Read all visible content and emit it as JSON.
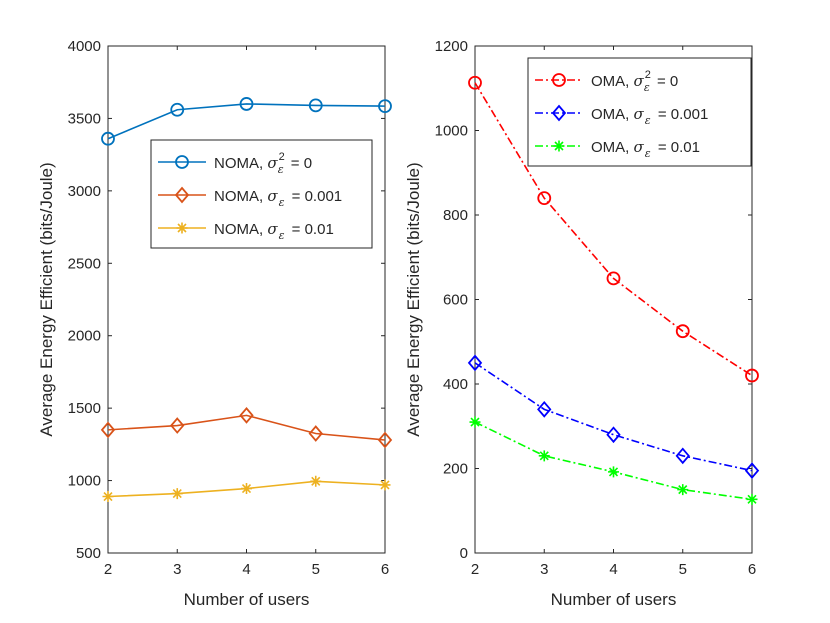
{
  "chart_data": [
    {
      "type": "line",
      "xlabel": "Number of users",
      "ylabel": "Average Energy Efficient (bits/Joule)",
      "x": [
        2,
        3,
        4,
        5,
        6
      ],
      "xlim": [
        2,
        6
      ],
      "ylim": [
        500,
        4000
      ],
      "xticks": [
        "2",
        "3",
        "4",
        "5",
        "6"
      ],
      "yticks": [
        "500",
        "1000",
        "1500",
        "2000",
        "2500",
        "3000",
        "3500",
        "4000"
      ],
      "legend_location": "center-right",
      "series": [
        {
          "name": "NOMA, σ_ε^2 = 0",
          "label_prefix": "NOMA,",
          "sym": "σ",
          "sub": "ε",
          "sup": "2",
          "label_suffix": "= 0",
          "color": "#0072BD",
          "marker": "circle",
          "line": "solid",
          "values": [
            3360,
            3560,
            3600,
            3590,
            3585
          ]
        },
        {
          "name": "NOMA, σ_ε = 0.001",
          "label_prefix": "NOMA,",
          "sym": "σ",
          "sub": "ε",
          "sup": "",
          "label_suffix": "= 0.001",
          "color": "#D95319",
          "marker": "diamond",
          "line": "solid",
          "values": [
            1350,
            1380,
            1450,
            1325,
            1280
          ]
        },
        {
          "name": "NOMA, σ_ε = 0.01",
          "label_prefix": "NOMA,",
          "sym": "σ",
          "sub": "ε",
          "sup": "",
          "label_suffix": "= 0.01",
          "color": "#EDB120",
          "marker": "star",
          "line": "solid",
          "values": [
            890,
            910,
            945,
            995,
            970
          ]
        }
      ]
    },
    {
      "type": "line",
      "xlabel": "Number of users",
      "ylabel": "Average Energy Efficient (bits/Joule)",
      "x": [
        2,
        3,
        4,
        5,
        6
      ],
      "xlim": [
        2,
        6
      ],
      "ylim": [
        0,
        1200
      ],
      "xticks": [
        "2",
        "3",
        "4",
        "5",
        "6"
      ],
      "yticks": [
        "0",
        "200",
        "400",
        "600",
        "800",
        "1000",
        "1200"
      ],
      "legend_location": "top-right",
      "series": [
        {
          "name": "OMA, σ_ε^2 = 0",
          "label_prefix": "OMA,",
          "sym": "σ",
          "sub": "ε",
          "sup": "2",
          "label_suffix": "= 0",
          "color": "#FF0000",
          "marker": "circle",
          "line": "dashdot",
          "values": [
            1113,
            840,
            650,
            525,
            420
          ]
        },
        {
          "name": "OMA, σ_ε = 0.001",
          "label_prefix": "OMA,",
          "sym": "σ",
          "sub": "ε",
          "sup": "",
          "label_suffix": "= 0.001",
          "color": "#0000FF",
          "marker": "diamond",
          "line": "dashdot",
          "values": [
            450,
            340,
            280,
            230,
            195
          ]
        },
        {
          "name": "OMA, σ_ε = 0.01",
          "label_prefix": "OMA,",
          "sym": "σ",
          "sub": "ε",
          "sup": "",
          "label_suffix": "= 0.01",
          "color": "#00FF00",
          "marker": "star",
          "line": "dashdot",
          "values": [
            310,
            230,
            192,
            150,
            127
          ]
        }
      ]
    }
  ]
}
